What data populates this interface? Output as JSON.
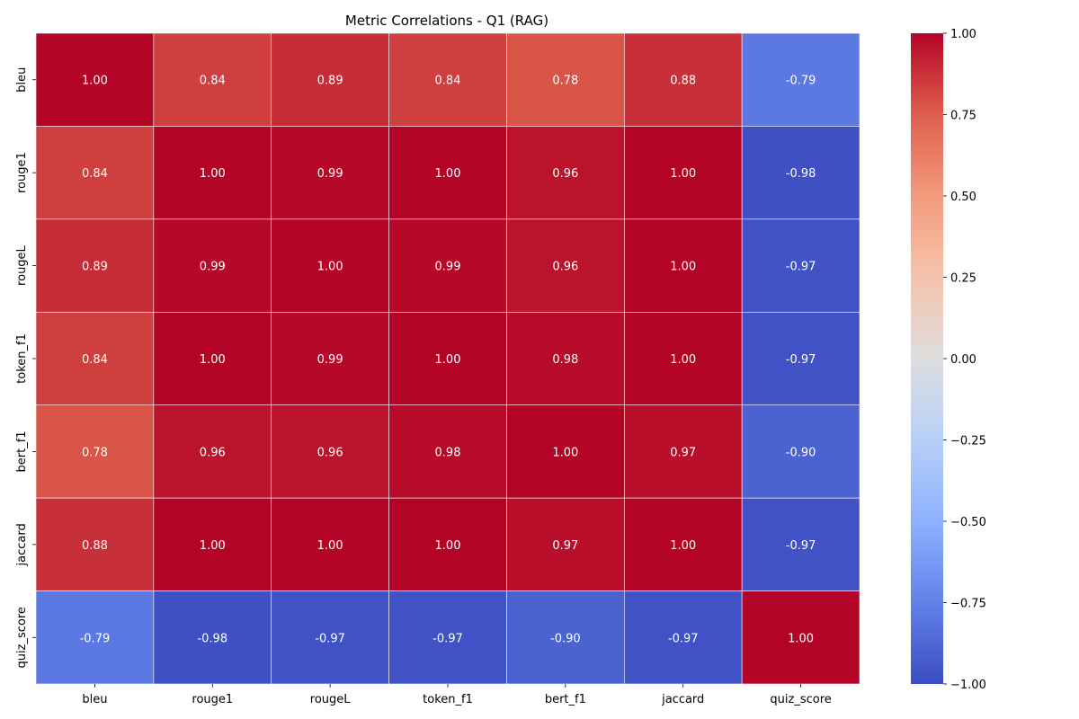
{
  "chart_data": {
    "type": "heatmap",
    "title": "Metric Correlations - Q1 (RAG)",
    "x_categories": [
      "bleu",
      "rouge1",
      "rougeL",
      "token_f1",
      "bert_f1",
      "jaccard",
      "quiz_score"
    ],
    "y_categories": [
      "bleu",
      "rouge1",
      "rougeL",
      "token_f1",
      "bert_f1",
      "jaccard",
      "quiz_score"
    ],
    "values": [
      [
        1.0,
        0.84,
        0.89,
        0.84,
        0.78,
        0.88,
        -0.79
      ],
      [
        0.84,
        1.0,
        0.99,
        1.0,
        0.96,
        1.0,
        -0.98
      ],
      [
        0.89,
        0.99,
        1.0,
        0.99,
        0.96,
        1.0,
        -0.97
      ],
      [
        0.84,
        1.0,
        0.99,
        1.0,
        0.98,
        1.0,
        -0.97
      ],
      [
        0.78,
        0.96,
        0.96,
        0.98,
        1.0,
        0.97,
        -0.9
      ],
      [
        0.88,
        1.0,
        1.0,
        1.0,
        0.97,
        1.0,
        -0.97
      ],
      [
        -0.79,
        -0.98,
        -0.97,
        -0.97,
        -0.9,
        -0.97,
        1.0
      ]
    ],
    "value_format": "2 decimals",
    "colormap": "coolwarm",
    "colorbar": {
      "range": [
        -1.0,
        1.0
      ],
      "ticks": [
        "1.00",
        "0.75",
        "0.50",
        "0.25",
        "0.00",
        "−0.25",
        "−0.50",
        "−0.75",
        "−1.00"
      ],
      "tick_values": [
        1.0,
        0.75,
        0.5,
        0.25,
        0.0,
        -0.25,
        -0.5,
        -0.75,
        -1.0
      ],
      "placement": "right"
    }
  }
}
